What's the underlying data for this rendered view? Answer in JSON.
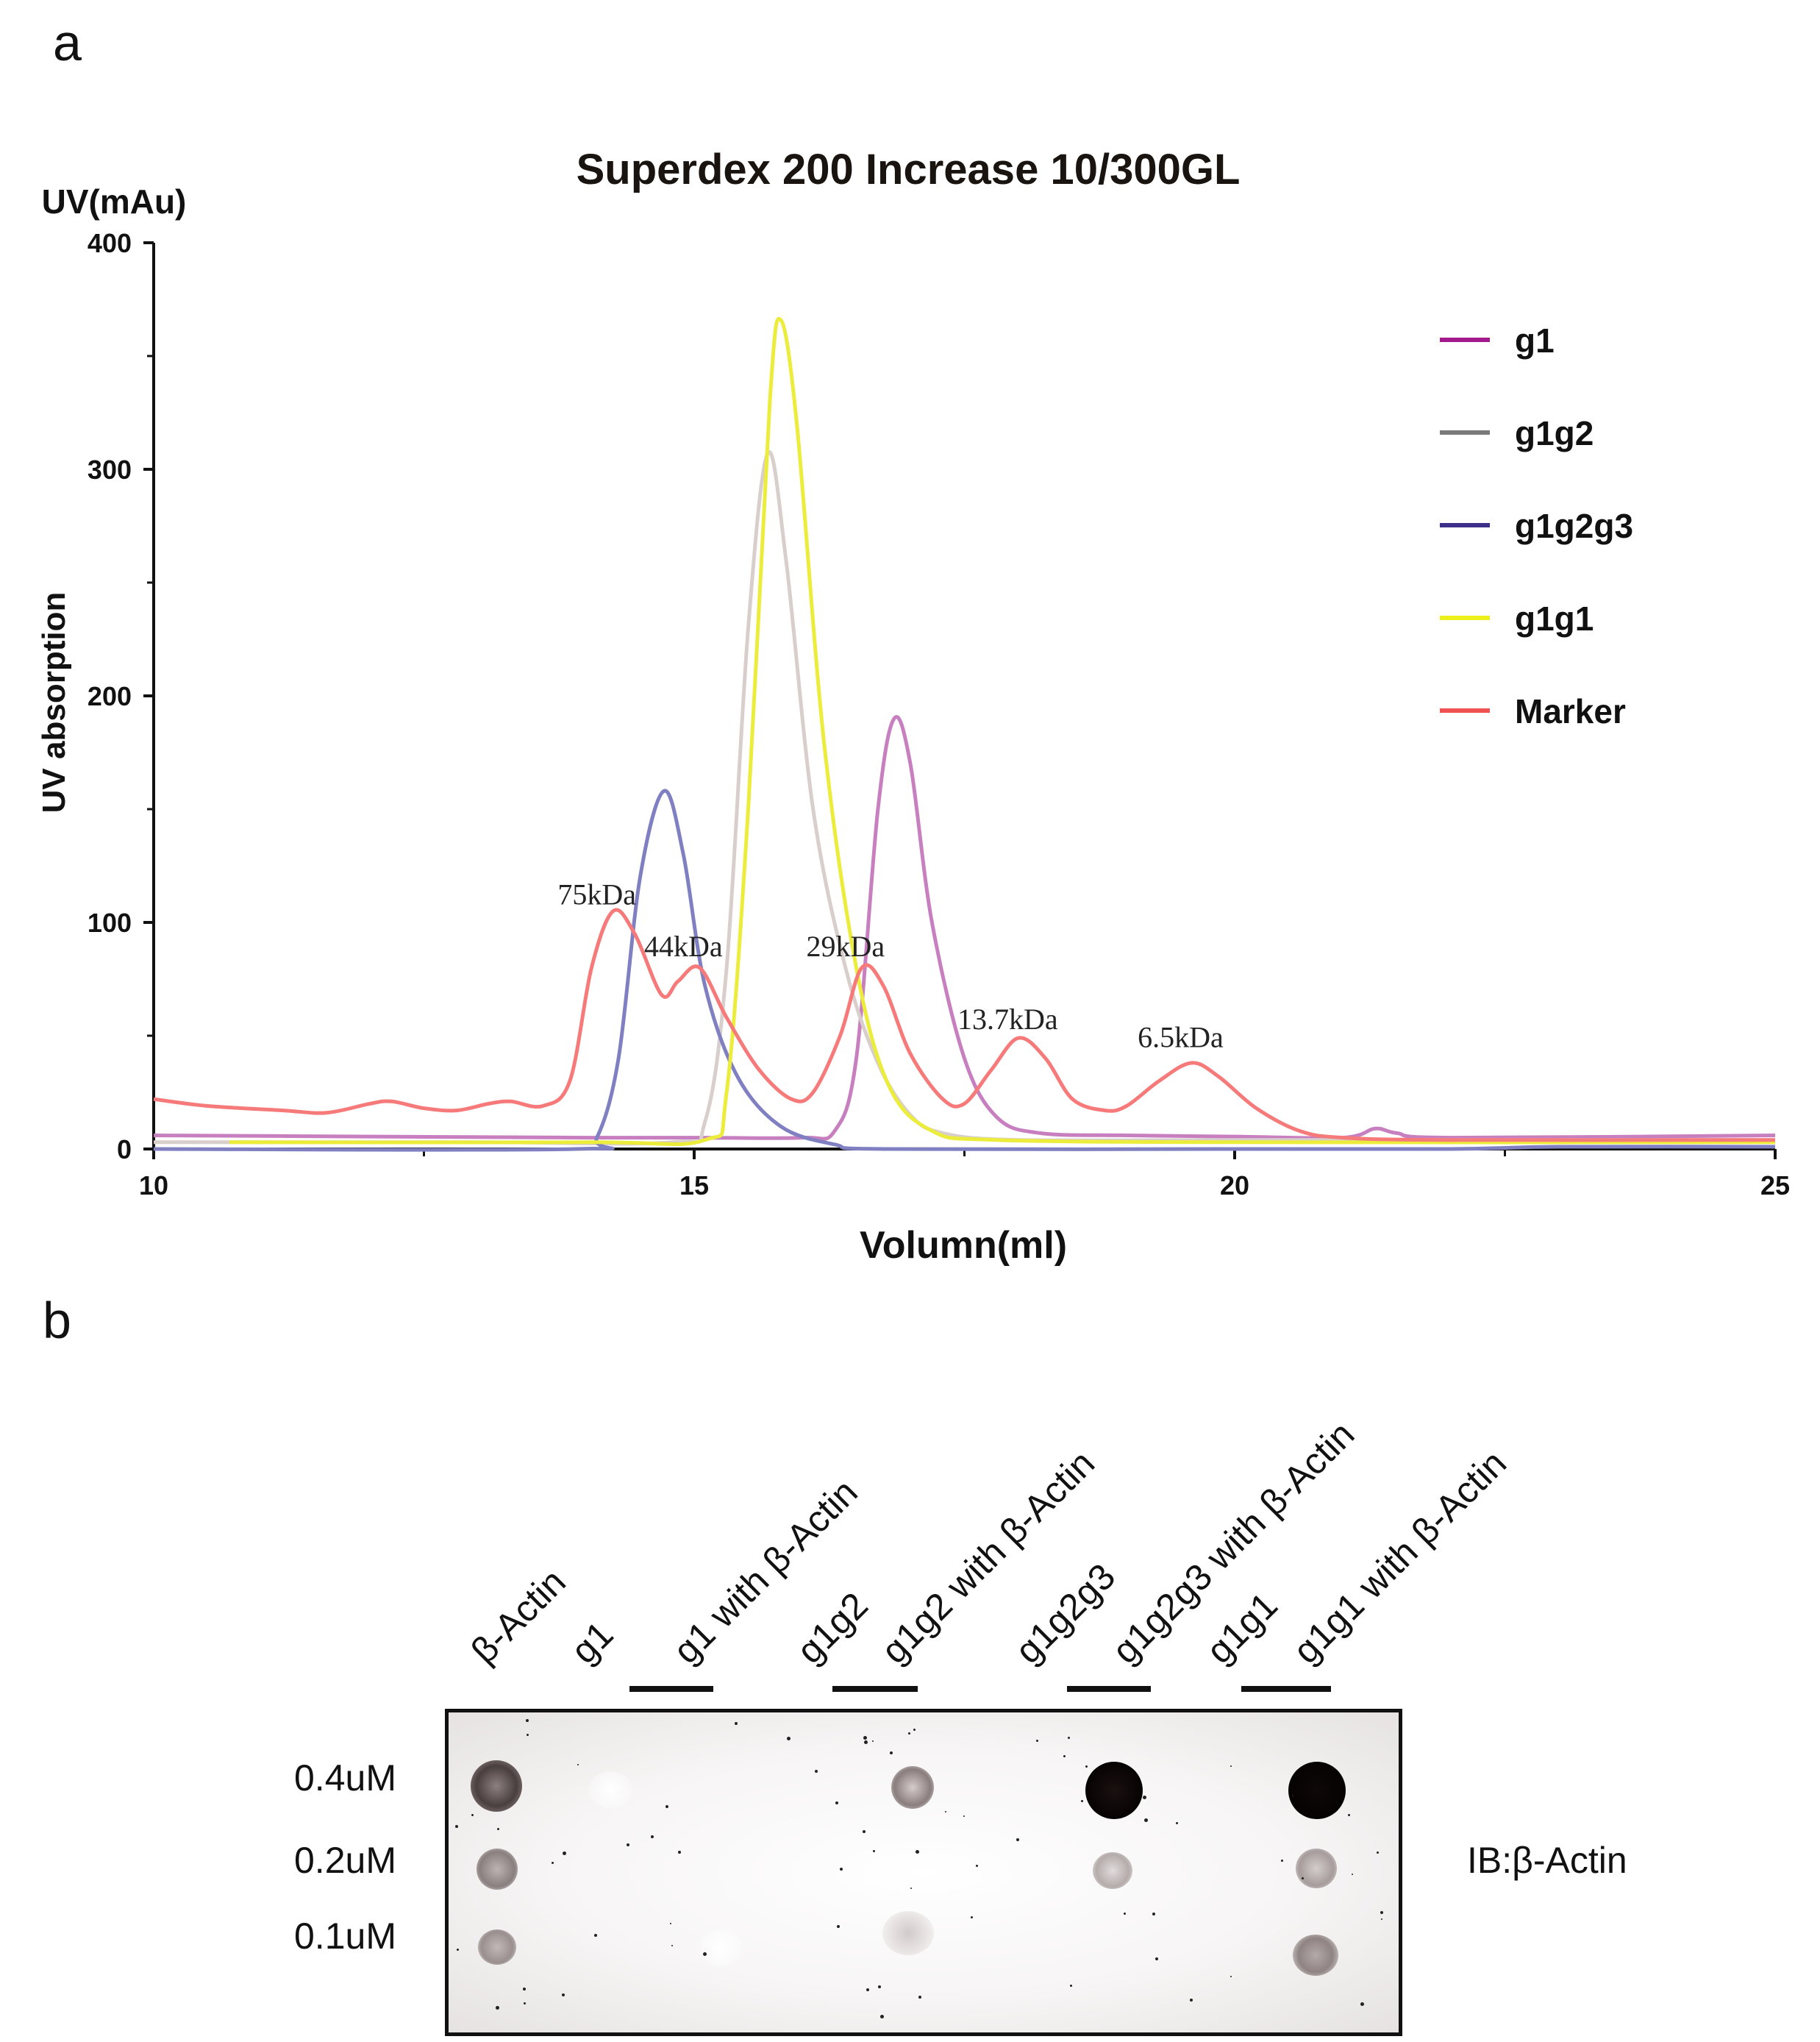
{
  "panel_a": {
    "label": "a"
  },
  "panel_b": {
    "label": "b"
  },
  "chart_data": {
    "type": "line",
    "title": "Superdex 200 Increase 10/300GL",
    "unit_label": "UV(mAu)",
    "ylabel": "UV absorption",
    "xlabel": "Volumn(ml)",
    "xlim": [
      10,
      25
    ],
    "ylim": [
      0,
      400
    ],
    "xticks": [
      10,
      15,
      20,
      25
    ],
    "yticks": [
      0,
      100,
      200,
      300,
      400
    ],
    "legend_position": "top-right",
    "series": [
      {
        "name": "g1",
        "color": "#c87fc0",
        "legend_color": "#a3198e",
        "points": [
          [
            10,
            6
          ],
          [
            12,
            5.5
          ],
          [
            14,
            5
          ],
          [
            15,
            5
          ],
          [
            16,
            5
          ],
          [
            16.3,
            8
          ],
          [
            16.5,
            40
          ],
          [
            16.7,
            150
          ],
          [
            16.85,
            190
          ],
          [
            17,
            170
          ],
          [
            17.2,
            100
          ],
          [
            17.5,
            40
          ],
          [
            17.8,
            14
          ],
          [
            18.2,
            7
          ],
          [
            19,
            6
          ],
          [
            20,
            5.5
          ],
          [
            21,
            5
          ],
          [
            21.3,
            9
          ],
          [
            21.5,
            7
          ],
          [
            22,
            5
          ],
          [
            25,
            6
          ]
        ]
      },
      {
        "name": "g1g2",
        "color": "#d8cfcc",
        "legend_color": "#7a7a7a",
        "points": [
          [
            10,
            3
          ],
          [
            13,
            3
          ],
          [
            14.8,
            3
          ],
          [
            15.1,
            12
          ],
          [
            15.3,
            80
          ],
          [
            15.5,
            230
          ],
          [
            15.68,
            307
          ],
          [
            15.85,
            260
          ],
          [
            16.1,
            150
          ],
          [
            16.4,
            80
          ],
          [
            16.7,
            38
          ],
          [
            17,
            15
          ],
          [
            17.3,
            7
          ],
          [
            18,
            4
          ],
          [
            20,
            4
          ],
          [
            22,
            4
          ],
          [
            25,
            4
          ]
        ]
      },
      {
        "name": "g1g2g3",
        "color": "#7f7fc2",
        "legend_color": "#3c2f8c",
        "points": [
          [
            10,
            0
          ],
          [
            13.9,
            0
          ],
          [
            14.1,
            5
          ],
          [
            14.3,
            40
          ],
          [
            14.5,
            120
          ],
          [
            14.72,
            158
          ],
          [
            14.9,
            130
          ],
          [
            15.1,
            72
          ],
          [
            15.4,
            32
          ],
          [
            15.8,
            10
          ],
          [
            16.3,
            2
          ],
          [
            16.8,
            0
          ],
          [
            20,
            0
          ],
          [
            22,
            0
          ],
          [
            23,
            1
          ],
          [
            25,
            1
          ]
        ]
      },
      {
        "name": "g1g1",
        "color": "#ecec3a",
        "legend_color": "#eeee1a",
        "points": [
          [
            10.7,
            3
          ],
          [
            14,
            3
          ],
          [
            15.1,
            4
          ],
          [
            15.3,
            25
          ],
          [
            15.5,
            150
          ],
          [
            15.7,
            330
          ],
          [
            15.8,
            366
          ],
          [
            15.95,
            320
          ],
          [
            16.2,
            180
          ],
          [
            16.5,
            80
          ],
          [
            16.8,
            28
          ],
          [
            17.2,
            8
          ],
          [
            17.8,
            4
          ],
          [
            20,
            3
          ],
          [
            25,
            3
          ]
        ]
      },
      {
        "name": "Marker",
        "color": "#f77a7a",
        "legend_color": "#f05252",
        "points": [
          [
            10,
            22
          ],
          [
            10.5,
            19
          ],
          [
            11.2,
            17
          ],
          [
            11.6,
            16
          ],
          [
            12,
            20
          ],
          [
            12.2,
            21
          ],
          [
            12.5,
            18
          ],
          [
            12.8,
            17
          ],
          [
            13.1,
            20
          ],
          [
            13.3,
            21
          ],
          [
            13.6,
            19
          ],
          [
            13.85,
            30
          ],
          [
            14.05,
            80
          ],
          [
            14.25,
            105
          ],
          [
            14.45,
            95
          ],
          [
            14.7,
            68
          ],
          [
            14.85,
            74
          ],
          [
            15.05,
            80
          ],
          [
            15.3,
            58
          ],
          [
            15.6,
            35
          ],
          [
            15.9,
            22
          ],
          [
            16.1,
            25
          ],
          [
            16.35,
            50
          ],
          [
            16.55,
            80
          ],
          [
            16.75,
            72
          ],
          [
            17,
            42
          ],
          [
            17.3,
            22
          ],
          [
            17.5,
            20
          ],
          [
            17.75,
            35
          ],
          [
            18,
            49
          ],
          [
            18.25,
            40
          ],
          [
            18.5,
            22
          ],
          [
            18.8,
            17
          ],
          [
            19,
            19
          ],
          [
            19.3,
            30
          ],
          [
            19.6,
            38
          ],
          [
            19.85,
            32
          ],
          [
            20.2,
            18
          ],
          [
            20.6,
            8
          ],
          [
            21,
            5
          ],
          [
            22,
            4
          ],
          [
            25,
            4
          ]
        ]
      }
    ],
    "annotations": [
      {
        "text": "75kDa",
        "x": 14.1,
        "y": 108
      },
      {
        "text": "44kDa",
        "x": 14.9,
        "y": 85
      },
      {
        "text": "29kDa",
        "x": 16.4,
        "y": 85
      },
      {
        "text": "13.7kDa",
        "x": 17.9,
        "y": 53
      },
      {
        "text": "6.5kDa",
        "x": 19.5,
        "y": 45
      }
    ]
  },
  "blot": {
    "lanes": [
      "β-Actin",
      "g1",
      "g1 with β-Actin",
      "g1g2",
      "g1g2 with β-Actin",
      "g1g2g3",
      "g1g2g3 with β-Actin",
      "g1g1",
      "g1g1 with β-Actin"
    ],
    "concentrations": [
      "0.4uM",
      "0.2uM",
      "0.1uM"
    ],
    "antibody_label": "IB:β-Actin"
  }
}
